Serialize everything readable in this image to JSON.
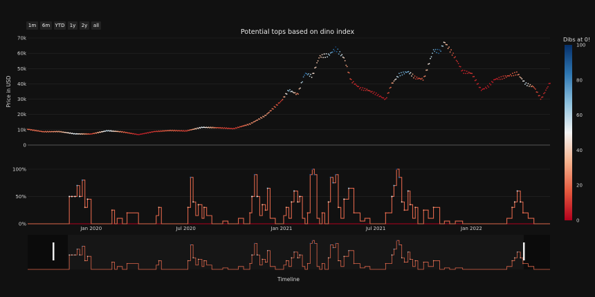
{
  "range_buttons": [
    "1m",
    "6m",
    "YTD",
    "1y",
    "2y",
    "all"
  ],
  "chart_data": {
    "type": "scatter",
    "title": "Potential tops based on dino index",
    "colorbar": {
      "title": "Dibs at 0!",
      "min": 0,
      "max": 100,
      "ticks": [
        0,
        20,
        40,
        60,
        80,
        100
      ],
      "tick_labels": [
        "0",
        "20",
        "40",
        "60",
        "80",
        "100"
      ],
      "colors": [
        "#b2001d",
        "#e65a3f",
        "#f6b38e",
        "#f4f4f4",
        "#8fc2de",
        "#2f78b3",
        "#06306a"
      ]
    },
    "price_panel": {
      "ylabel": "Price in USD",
      "ylim": [
        0,
        70000
      ],
      "yticks": [
        0,
        10000,
        20000,
        30000,
        40000,
        50000,
        60000,
        70000
      ],
      "ytick_labels": [
        "0",
        "10k",
        "20k",
        "30k",
        "40k",
        "50k",
        "60k",
        "70k"
      ],
      "xlim": [
        "2019-09-01",
        "2022-06-01"
      ],
      "series": {
        "x": [
          "2019-09-01",
          "2019-10-01",
          "2019-11-01",
          "2019-12-01",
          "2020-01-01",
          "2020-02-01",
          "2020-03-01",
          "2020-04-01",
          "2020-05-01",
          "2020-06-01",
          "2020-07-01",
          "2020-08-01",
          "2020-09-01",
          "2020-10-01",
          "2020-11-01",
          "2020-12-01",
          "2021-01-01",
          "2021-01-15",
          "2021-02-01",
          "2021-02-15",
          "2021-03-01",
          "2021-03-15",
          "2021-04-01",
          "2021-04-15",
          "2021-05-01",
          "2021-05-15",
          "2021-06-01",
          "2021-06-15",
          "2021-07-01",
          "2021-07-20",
          "2021-08-01",
          "2021-08-15",
          "2021-09-01",
          "2021-09-15",
          "2021-10-01",
          "2021-10-20",
          "2021-11-01",
          "2021-11-10",
          "2021-12-01",
          "2021-12-15",
          "2022-01-01",
          "2022-01-20",
          "2022-02-01",
          "2022-02-15",
          "2022-03-01",
          "2022-03-30",
          "2022-04-15",
          "2022-05-01",
          "2022-05-15",
          "2022-06-01"
        ],
        "y": [
          10300,
          8700,
          8800,
          7300,
          7200,
          9400,
          8600,
          6800,
          8800,
          9500,
          9200,
          11600,
          11300,
          10700,
          13700,
          19300,
          29000,
          36000,
          33000,
          47000,
          45000,
          58000,
          58700,
          63000,
          57000,
          42000,
          37000,
          36000,
          33500,
          29800,
          40000,
          46000,
          48000,
          44000,
          43000,
          62000,
          61000,
          67500,
          57000,
          48000,
          47000,
          36000,
          38000,
          43000,
          44000,
          47000,
          40000,
          38000,
          30000,
          41000
        ],
        "dibs": [
          20,
          20,
          30,
          55,
          10,
          60,
          20,
          5,
          10,
          20,
          10,
          55,
          15,
          10,
          25,
          30,
          10,
          70,
          20,
          90,
          45,
          35,
          60,
          95,
          40,
          10,
          5,
          10,
          5,
          5,
          25,
          70,
          75,
          10,
          20,
          70,
          90,
          40,
          10,
          5,
          10,
          5,
          5,
          5,
          10,
          20,
          60,
          15,
          10,
          5
        ]
      }
    },
    "probability_panel": {
      "ylim": [
        0,
        1.1
      ],
      "yticks": [
        0,
        0.5,
        1.0
      ],
      "ytick_labels": [
        "0%",
        "50%",
        "100%"
      ],
      "xticks": [
        "2020-01-01",
        "2020-07-01",
        "2021-01-01",
        "2021-07-01",
        "2022-01-01"
      ],
      "xtick_labels": [
        "Jan 2020",
        "Jul 2020",
        "Jan 2021",
        "Jul 2021",
        "Jan 2022"
      ],
      "series": {
        "x": [
          "2019-09-01",
          "2019-11-15",
          "2019-11-20",
          "2019-11-25",
          "2019-12-01",
          "2019-12-05",
          "2019-12-10",
          "2019-12-15",
          "2019-12-20",
          "2019-12-25",
          "2020-01-01",
          "2020-01-10",
          "2020-02-01",
          "2020-02-10",
          "2020-02-15",
          "2020-02-20",
          "2020-03-01",
          "2020-03-10",
          "2020-04-01",
          "2020-05-01",
          "2020-05-05",
          "2020-05-10",
          "2020-05-15",
          "2020-06-01",
          "2020-06-15",
          "2020-07-01",
          "2020-07-05",
          "2020-07-10",
          "2020-07-15",
          "2020-07-20",
          "2020-07-25",
          "2020-08-01",
          "2020-08-05",
          "2020-08-10",
          "2020-08-20",
          "2020-09-01",
          "2020-09-10",
          "2020-09-20",
          "2020-10-01",
          "2020-10-10",
          "2020-10-20",
          "2020-11-01",
          "2020-11-05",
          "2020-11-10",
          "2020-11-15",
          "2020-11-20",
          "2020-11-25",
          "2020-12-01",
          "2020-12-05",
          "2020-12-10",
          "2020-12-20",
          "2021-01-01",
          "2021-01-05",
          "2021-01-10",
          "2021-01-15",
          "2021-01-20",
          "2021-01-25",
          "2021-02-01",
          "2021-02-05",
          "2021-02-10",
          "2021-02-15",
          "2021-02-20",
          "2021-02-25",
          "2021-03-01",
          "2021-03-05",
          "2021-03-10",
          "2021-03-15",
          "2021-03-20",
          "2021-03-25",
          "2021-04-01",
          "2021-04-05",
          "2021-04-10",
          "2021-04-15",
          "2021-04-20",
          "2021-04-25",
          "2021-05-01",
          "2021-05-10",
          "2021-05-20",
          "2021-06-01",
          "2021-06-10",
          "2021-06-20",
          "2021-07-01",
          "2021-07-10",
          "2021-07-20",
          "2021-08-01",
          "2021-08-05",
          "2021-08-10",
          "2021-08-15",
          "2021-08-20",
          "2021-08-25",
          "2021-09-01",
          "2021-09-05",
          "2021-09-10",
          "2021-09-15",
          "2021-09-20",
          "2021-10-01",
          "2021-10-10",
          "2021-10-20",
          "2021-11-01",
          "2021-11-10",
          "2021-11-20",
          "2021-12-01",
          "2021-12-15",
          "2022-01-01",
          "2022-01-15",
          "2022-02-01",
          "2022-02-15",
          "2022-03-01",
          "2022-03-10",
          "2022-03-20",
          "2022-03-25",
          "2022-03-30",
          "2022-04-05",
          "2022-04-10",
          "2022-04-20",
          "2022-05-01",
          "2022-05-15",
          "2022-06-01"
        ],
        "y": [
          0,
          0,
          0.5,
          0.5,
          0.5,
          0.7,
          0.5,
          0.8,
          0.3,
          0.45,
          0,
          0,
          0,
          0.25,
          0,
          0.1,
          0,
          0.2,
          0,
          0,
          0.15,
          0.3,
          0,
          0,
          0,
          0,
          0.3,
          0.85,
          0.4,
          0.15,
          0.35,
          0.1,
          0.3,
          0.15,
          0,
          0,
          0.05,
          0,
          0,
          0.1,
          0,
          0.2,
          0.5,
          0.9,
          0.5,
          0.15,
          0.35,
          0.25,
          0.65,
          0.1,
          0,
          0,
          0.15,
          0.3,
          0.1,
          0.4,
          0.6,
          0.4,
          0.5,
          0.1,
          0,
          0.2,
          0.9,
          1.0,
          0.9,
          0.1,
          0,
          0.2,
          0,
          0.4,
          0.85,
          0.75,
          0.9,
          0.3,
          0.1,
          0.45,
          0.65,
          0.2,
          0.05,
          0.1,
          0,
          0,
          0,
          0.2,
          0.5,
          0.7,
          1.0,
          0.85,
          0.4,
          0.25,
          0.6,
          0.35,
          0.1,
          0.3,
          0,
          0.25,
          0.1,
          0.3,
          0,
          0.05,
          0,
          0.05,
          0,
          0,
          0,
          0,
          0,
          0,
          0.1,
          0.3,
          0.4,
          0.6,
          0.4,
          0.2,
          0.1,
          0,
          0,
          0
        ]
      }
    },
    "rangeslider": {
      "xlabel": "Timeline"
    }
  }
}
